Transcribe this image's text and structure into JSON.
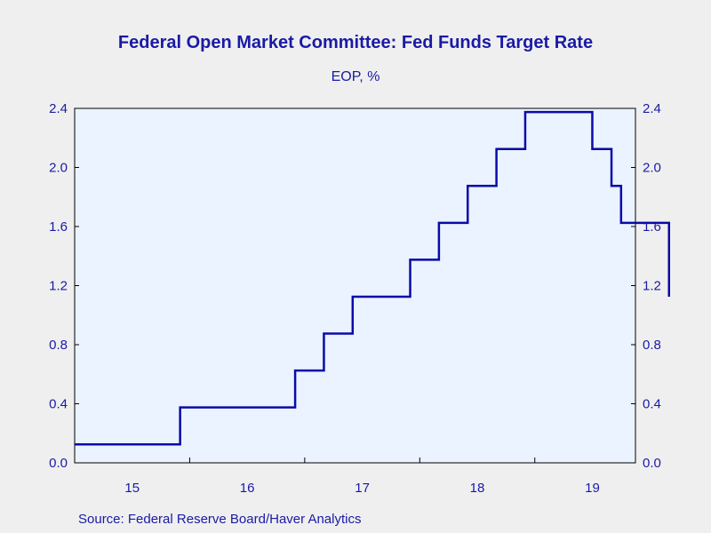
{
  "chart_data": {
    "type": "line",
    "title": "Federal Open Market Committee: Fed Funds Target Rate",
    "subtitle": "EOP, %",
    "source": "Source:  Federal Reserve Board/Haver Analytics",
    "x_ticks": [
      "15",
      "16",
      "17",
      "18",
      "19"
    ],
    "x_range": [
      "2015-01",
      "2019-11"
    ],
    "ylim": [
      0.0,
      2.4
    ],
    "y_ticks": [
      "0.0",
      "0.4",
      "0.8",
      "1.2",
      "1.6",
      "2.0",
      "2.4"
    ],
    "y_axis_both_sides": true,
    "grid": false,
    "legend": "none",
    "line_color": "#0a0aa8",
    "plot_background": "#eaf3ff",
    "page_background": "#efefef",
    "series": [
      {
        "step": true,
        "values": [
          {
            "x": "2015-01",
            "y": 0.125
          },
          {
            "x": "2015-12",
            "y": 0.375
          },
          {
            "x": "2016-12",
            "y": 0.625
          },
          {
            "x": "2017-03",
            "y": 0.875
          },
          {
            "x": "2017-06",
            "y": 1.125
          },
          {
            "x": "2017-12",
            "y": 1.375
          },
          {
            "x": "2018-03",
            "y": 1.625
          },
          {
            "x": "2018-06",
            "y": 1.875
          },
          {
            "x": "2018-09",
            "y": 2.125
          },
          {
            "x": "2018-12",
            "y": 2.375
          },
          {
            "x": "2019-07",
            "y": 2.125
          },
          {
            "x": "2019-09",
            "y": 1.875
          },
          {
            "x": "2019-10",
            "y": 1.625
          },
          {
            "x": "2020-03",
            "y": 1.125
          }
        ]
      }
    ]
  }
}
